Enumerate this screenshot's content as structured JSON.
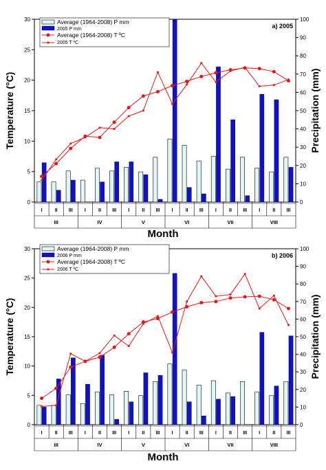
{
  "shared": {
    "y_left_label": "Temperature (°C)",
    "y_right_label": "Precipitation (mm)",
    "x_label": "Month",
    "left_ticks": [
      "0",
      "5",
      "10",
      "15",
      "20",
      "25",
      "30"
    ],
    "right_ticks": [
      "0",
      "10",
      "20",
      "30",
      "40",
      "50",
      "60",
      "70",
      "80",
      "90",
      "100"
    ],
    "decades": [
      "I",
      "II",
      "III",
      "I",
      "II",
      "III",
      "I",
      "II",
      "III",
      "I",
      "II",
      "III",
      "I",
      "II",
      "III",
      "I",
      "II",
      "III"
    ],
    "months": [
      "III",
      "IV",
      "V",
      "VI",
      "VII",
      "VIII"
    ],
    "colors": {
      "avg_bar": "#dff6f4",
      "year_bar": "#1010d0",
      "line": "#e01818"
    }
  },
  "chart_data": [
    {
      "type": "bar",
      "panel_label": "a) 2005",
      "xlabel": "Month",
      "ylabel": "Temperature (°C)",
      "y2label": "Precipitation (mm)",
      "ylim": [
        0,
        30
      ],
      "y2lim": [
        0,
        100
      ],
      "categories": [
        "I",
        "II",
        "III",
        "I",
        "II",
        "III",
        "I",
        "II",
        "III",
        "I",
        "II",
        "III",
        "I",
        "II",
        "III",
        "I",
        "II",
        "III"
      ],
      "legend": [
        "Average     (1964-2008) P mm",
        "2005 P mm",
        "Average (1964-2008) T ºC",
        "2005 T ºC"
      ],
      "series": [
        {
          "name": "Average     (1964-2008) P mm",
          "axis": "right",
          "kind": "bar",
          "values": [
            11,
            11,
            17,
            12,
            18.5,
            17,
            19,
            16.5,
            24.5,
            34.5,
            31,
            22.5,
            25,
            18,
            24.5,
            18.5,
            16.5,
            24.5
          ]
        },
        {
          "name": "2005 P mm",
          "axis": "right",
          "kind": "bar",
          "values": [
            21.5,
            6.5,
            12,
            0,
            11,
            22,
            22,
            15,
            1.5,
            100,
            8,
            4.5,
            74,
            45,
            3.5,
            59,
            56,
            19
          ]
        },
        {
          "name": "Average (1964-2008) T ºC",
          "axis": "left",
          "kind": "line",
          "values": [
            4.2,
            6.3,
            8.8,
            10.8,
            10.6,
            13.1,
            15.5,
            17.4,
            18.1,
            19.1,
            19.8,
            20.6,
            21.2,
            21.7,
            22.0,
            21.9,
            21.4,
            19.9
          ]
        },
        {
          "name": "2005 T ºC",
          "axis": "left",
          "kind": "line",
          "values": [
            3.6,
            7.0,
            9.6,
            10.6,
            12.2,
            12.0,
            14.1,
            15.0,
            21.3,
            16.1,
            19.3,
            22.8,
            19.7,
            21.5,
            22.1,
            19.0,
            19.2,
            20.1
          ]
        }
      ]
    },
    {
      "type": "bar",
      "panel_label": "b)  2006",
      "xlabel": "Month",
      "ylabel": "Temperature (°C)",
      "y2label": "Precipitation (mm)",
      "ylim": [
        0,
        30
      ],
      "y2lim": [
        0,
        100
      ],
      "categories": [
        "I",
        "II",
        "III",
        "I",
        "II",
        "III",
        "I",
        "II",
        "III",
        "I",
        "II",
        "III",
        "I",
        "II",
        "III",
        "I",
        "II",
        "III"
      ],
      "legend": [
        "Average     (1964-2008) P mm",
        "2006 P mm",
        "Average (1964-2008) T ºC",
        "2006 T ºC"
      ],
      "series": [
        {
          "name": "Average     (1964-2008) P mm",
          "axis": "right",
          "kind": "bar",
          "values": [
            11,
            11,
            17,
            12,
            18.5,
            17,
            19,
            16.5,
            24.5,
            34.5,
            31,
            22.5,
            25,
            18,
            24.5,
            18.5,
            16.5,
            24.5
          ]
        },
        {
          "name": "2006 P mm",
          "axis": "right",
          "kind": "bar",
          "values": [
            10,
            26,
            38,
            23,
            39.5,
            3,
            13,
            29.5,
            28,
            86,
            13,
            5,
            14.5,
            16,
            0,
            52.5,
            22,
            50.5
          ]
        },
        {
          "name": "Average (1964-2008) T ºC",
          "axis": "left",
          "kind": "line",
          "values": [
            4.5,
            6.2,
            9.8,
            10.8,
            11.5,
            13.2,
            15.5,
            17.5,
            18.1,
            19.2,
            20.1,
            20.8,
            21.0,
            21.6,
            21.8,
            21.9,
            21.3,
            19.8
          ]
        },
        {
          "name": "2006 T ºC",
          "axis": "left",
          "kind": "line",
          "values": [
            3.1,
            3.3,
            12.1,
            10.8,
            12.2,
            15.2,
            13.4,
            17.2,
            18.5,
            12.3,
            21.0,
            25.3,
            21.9,
            22.2,
            25.7,
            19.8,
            22.0,
            17.0
          ]
        }
      ]
    }
  ]
}
